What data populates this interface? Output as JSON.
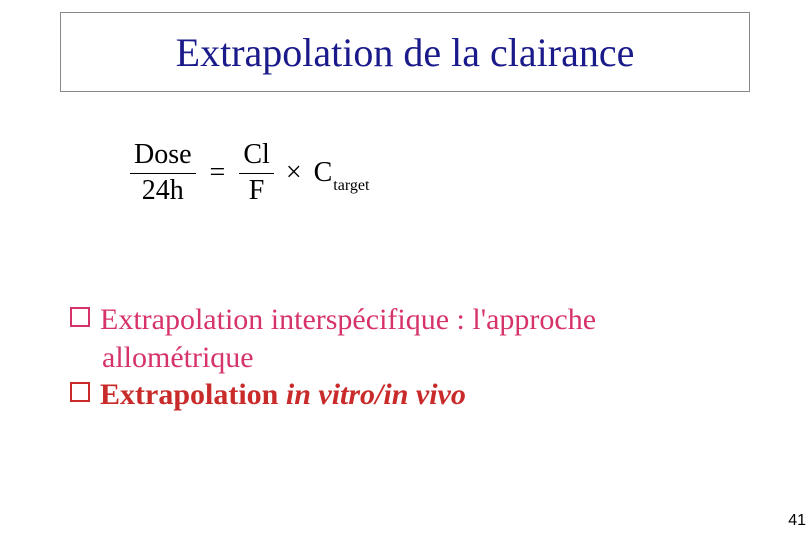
{
  "title": "Extrapolation de la clairance",
  "title_color": "#1a1a8a",
  "title_fontsize": 40,
  "equation": {
    "frac1_num": "Dose",
    "frac1_den": "24h",
    "eq": "=",
    "frac2_num": "Cl",
    "frac2_den": "F",
    "times": "×",
    "c_var": "C",
    "c_sub": "target"
  },
  "bullets": [
    {
      "text1": "Extrapolation interspécifique : l'approche",
      "text2": "allométrique",
      "color": "#d6336c",
      "bold": false,
      "italic": false
    },
    {
      "text1_prefix": "Extrapolation ",
      "text1_italic": "in vitro/in vivo",
      "color": "#c92a2a",
      "bold": true
    }
  ],
  "page_number": "41"
}
